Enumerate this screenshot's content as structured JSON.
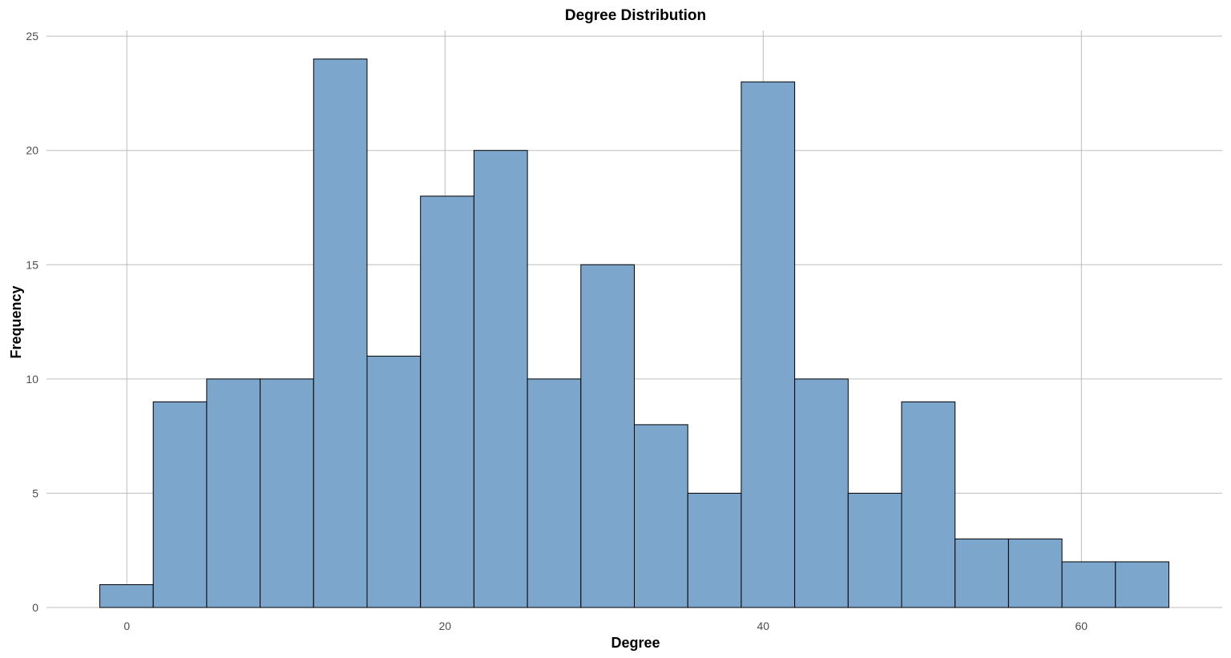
{
  "chart_data": {
    "type": "bar",
    "title": "Degree Distribution",
    "xlabel": "Degree",
    "ylabel": "Frequency",
    "bin_width": 3.36,
    "bins": [
      {
        "x_start": -1.7,
        "x_end": 1.66,
        "count": 1
      },
      {
        "x_start": 1.66,
        "x_end": 5.02,
        "count": 9
      },
      {
        "x_start": 5.02,
        "x_end": 8.38,
        "count": 10
      },
      {
        "x_start": 8.38,
        "x_end": 11.74,
        "count": 10
      },
      {
        "x_start": 11.74,
        "x_end": 15.1,
        "count": 24
      },
      {
        "x_start": 15.1,
        "x_end": 18.46,
        "count": 11
      },
      {
        "x_start": 18.46,
        "x_end": 21.82,
        "count": 18
      },
      {
        "x_start": 21.82,
        "x_end": 25.18,
        "count": 20
      },
      {
        "x_start": 25.18,
        "x_end": 28.54,
        "count": 10
      },
      {
        "x_start": 28.54,
        "x_end": 31.9,
        "count": 15
      },
      {
        "x_start": 31.9,
        "x_end": 35.26,
        "count": 8
      },
      {
        "x_start": 35.26,
        "x_end": 38.62,
        "count": 5
      },
      {
        "x_start": 38.62,
        "x_end": 41.98,
        "count": 23
      },
      {
        "x_start": 41.98,
        "x_end": 45.34,
        "count": 10
      },
      {
        "x_start": 45.34,
        "x_end": 48.7,
        "count": 5
      },
      {
        "x_start": 48.7,
        "x_end": 52.06,
        "count": 9
      },
      {
        "x_start": 52.06,
        "x_end": 55.42,
        "count": 3
      },
      {
        "x_start": 55.42,
        "x_end": 58.78,
        "count": 3
      },
      {
        "x_start": 58.78,
        "x_end": 62.14,
        "count": 2
      },
      {
        "x_start": 62.14,
        "x_end": 65.5,
        "count": 2
      }
    ],
    "xlim": [
      -5.05,
      68.85
    ],
    "ylim": [
      0,
      25.25
    ],
    "x_ticks": [
      0,
      20,
      40,
      60
    ],
    "y_ticks": [
      0,
      5,
      10,
      15,
      20,
      25
    ],
    "grid": true,
    "colors": {
      "bar_fill": "#7ca6cc",
      "bar_stroke": "#000000",
      "grid": "#bdbdbd"
    }
  }
}
